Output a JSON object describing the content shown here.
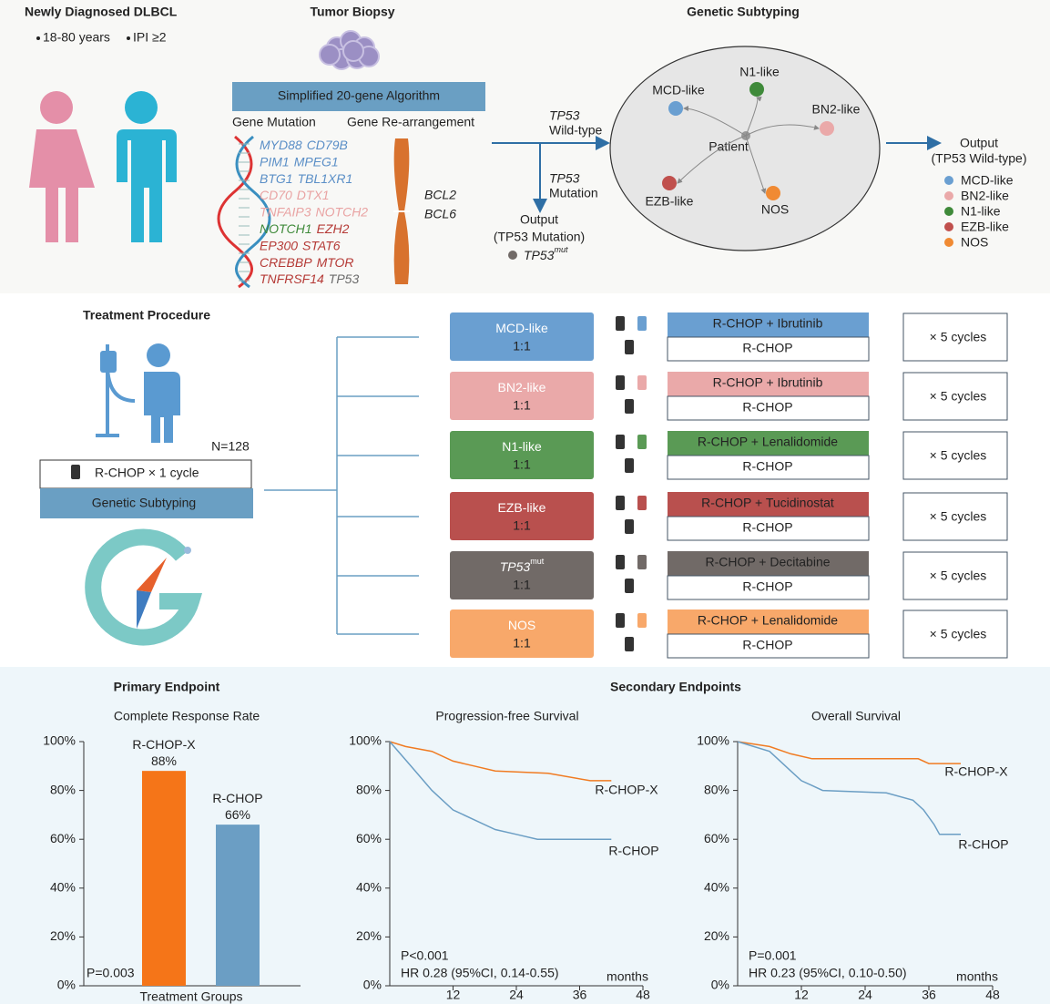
{
  "diagnosis": {
    "title": "Newly Diagnosed DLBCL",
    "criteria": [
      "18-80 years",
      "IPI ≥2"
    ]
  },
  "biopsy": {
    "title": "Tumor Biopsy",
    "algorithm": "Simplified 20-gene Algorithm",
    "mutation_heading": "Gene Mutation",
    "rearrangement_heading": "Gene Re-arrangement",
    "mutations": [
      [
        {
          "name": "MYD88",
          "color": "#5b8fc7"
        },
        {
          "name": "CD79B",
          "color": "#5b8fc7"
        }
      ],
      [
        {
          "name": "PIM1",
          "color": "#5b8fc7"
        },
        {
          "name": "MPEG1",
          "color": "#5b8fc7"
        }
      ],
      [
        {
          "name": "BTG1",
          "color": "#5b8fc7"
        },
        {
          "name": "TBL1XR1",
          "color": "#5b8fc7"
        }
      ],
      [
        {
          "name": "CD70",
          "color": "#e9a3a3"
        },
        {
          "name": "DTX1",
          "color": "#e9a3a3"
        }
      ],
      [
        {
          "name": "TNFAIP3",
          "color": "#e9a3a3"
        },
        {
          "name": "NOTCH2",
          "color": "#e9a3a3"
        }
      ],
      [
        {
          "name": "NOTCH1",
          "color": "#3f8a3a"
        },
        {
          "name": "EZH2",
          "color": "#b53a36"
        }
      ],
      [
        {
          "name": "EP300",
          "color": "#b53a36"
        },
        {
          "name": "STAT6",
          "color": "#b53a36"
        }
      ],
      [
        {
          "name": "CREBBP",
          "color": "#b53a36"
        },
        {
          "name": "MTOR",
          "color": "#b53a36"
        }
      ],
      [
        {
          "name": "TNFRSF14",
          "color": "#b53a36"
        },
        {
          "name": "TP53",
          "color": "#6b6b6b"
        }
      ]
    ],
    "rearrangements": [
      {
        "name": "BCL2",
        "color": "#b53a36"
      },
      {
        "name": "BCL6",
        "color": "#e9a3a3"
      }
    ]
  },
  "split": {
    "wild_type": [
      "TP53",
      "Wild-type"
    ],
    "mutation": [
      "TP53",
      "Mutation"
    ],
    "output_title": "Output",
    "output_label": "(TP53 Mutation)",
    "output_gene": "TP53",
    "output_sup": "mut"
  },
  "subtyping": {
    "title": "Genetic Subtyping",
    "center": "Patient",
    "nodes": [
      {
        "name": "MCD-like",
        "color": "#6a9fd1"
      },
      {
        "name": "N1-like",
        "color": "#3f8a3a"
      },
      {
        "name": "BN2-like",
        "color": "#eaa9a9"
      },
      {
        "name": "EZB-like",
        "color": "#c0504d"
      },
      {
        "name": "NOS",
        "color": "#f08a33"
      }
    ],
    "output_title": "Output",
    "output_label": "(TP53 Wild-type)",
    "legend": [
      {
        "name": "MCD-like",
        "color": "#6a9fd1"
      },
      {
        "name": "BN2-like",
        "color": "#eaa9a9"
      },
      {
        "name": "N1-like",
        "color": "#3f8a3a"
      },
      {
        "name": "EZB-like",
        "color": "#c0504d"
      },
      {
        "name": "NOS",
        "color": "#f08a33"
      }
    ]
  },
  "treatment": {
    "title": "Treatment Procedure",
    "n": "N=128",
    "induction": "R-CHOP × 1 cycle",
    "subtyping": "Genetic Subtyping",
    "arms": [
      {
        "name": "MCD-like",
        "ratio": "1:1",
        "experimental": "R-CHOP + Ibrutinib",
        "control": "R-CHOP",
        "cycles": "× 5 cycles",
        "color": "#6a9fd1"
      },
      {
        "name": "BN2-like",
        "ratio": "1:1",
        "experimental": "R-CHOP + Ibrutinib",
        "control": "R-CHOP",
        "cycles": "× 5 cycles",
        "color": "#eaa9a9"
      },
      {
        "name": "N1-like",
        "ratio": "1:1",
        "experimental": "R-CHOP + Lenalidomide",
        "control": "R-CHOP",
        "cycles": "× 5 cycles",
        "color": "#5a9a55"
      },
      {
        "name": "EZB-like",
        "ratio": "1:1",
        "experimental": "R-CHOP + Tucidinostat",
        "control": "R-CHOP",
        "cycles": "× 5 cycles",
        "color": "#b9504e"
      },
      {
        "name": "TP53",
        "sup": "mut",
        "ratio": "1:1",
        "experimental": "R-CHOP + Decitabine",
        "control": "R-CHOP",
        "cycles": "× 5 cycles",
        "color": "#716a67"
      },
      {
        "name": "NOS",
        "ratio": "1:1",
        "experimental": "R-CHOP + Lenalidomide",
        "control": "R-CHOP",
        "cycles": "× 5 cycles",
        "color": "#f8a86a"
      }
    ]
  },
  "endpoints": {
    "primary": "Primary Endpoint",
    "secondary": "Secondary Endpoints"
  },
  "chart_data": [
    {
      "type": "bar",
      "title": "Complete Response Rate",
      "x_label": "Treatment Groups",
      "annotation": "P=0.003",
      "categories": [
        "R-CHOP-X",
        "R-CHOP"
      ],
      "colors": [
        "#f57518",
        "#6b9ec4"
      ],
      "values": [
        88,
        66
      ],
      "value_labels": [
        "88%",
        "66%"
      ],
      "ylim": [
        0,
        100
      ],
      "yticks": [
        {
          "value": 0,
          "label": "0%"
        },
        {
          "value": 20,
          "label": "20%"
        },
        {
          "value": 40,
          "label": "40%"
        },
        {
          "value": 60,
          "label": "60%"
        },
        {
          "value": 80,
          "label": "80%"
        },
        {
          "value": 100,
          "label": "100%"
        }
      ]
    },
    {
      "type": "line",
      "title": "Progression-free Survival",
      "x_label": "months",
      "annotations": [
        "P<0.001",
        "HR 0.28 (95%CI, 0.14-0.55)"
      ],
      "xlim": [
        0,
        48
      ],
      "xticks": [
        12,
        24,
        36,
        48
      ],
      "ylim": [
        0,
        100
      ],
      "yticks": [
        {
          "value": 0,
          "label": "0%"
        },
        {
          "value": 20,
          "label": "20%"
        },
        {
          "value": 40,
          "label": "40%"
        },
        {
          "value": 60,
          "label": "60%"
        },
        {
          "value": 80,
          "label": "80%"
        },
        {
          "value": 100,
          "label": "100%"
        }
      ],
      "series": [
        {
          "name": "R-CHOP-X",
          "color": "#f07b22",
          "x": [
            0,
            3,
            8,
            12,
            16,
            20,
            30,
            38,
            42
          ],
          "values": [
            100,
            98,
            96,
            92,
            90,
            88,
            87,
            84,
            84
          ]
        },
        {
          "name": "R-CHOP",
          "color": "#6b9ec4",
          "x": [
            0,
            2,
            4,
            6,
            8,
            10,
            12,
            16,
            20,
            24,
            28,
            42
          ],
          "values": [
            100,
            95,
            90,
            85,
            80,
            76,
            72,
            68,
            64,
            62,
            60,
            60
          ]
        }
      ]
    },
    {
      "type": "line",
      "title": "Overall Survival",
      "x_label": "months",
      "annotations": [
        "P=0.001",
        "HR 0.23 (95%CI, 0.10-0.50)"
      ],
      "xlim": [
        0,
        48
      ],
      "xticks": [
        12,
        24,
        36,
        48
      ],
      "ylim": [
        0,
        100
      ],
      "yticks": [
        {
          "value": 0,
          "label": "0%"
        },
        {
          "value": 20,
          "label": "20%"
        },
        {
          "value": 40,
          "label": "40%"
        },
        {
          "value": 60,
          "label": "60%"
        },
        {
          "value": 80,
          "label": "80%"
        },
        {
          "value": 100,
          "label": "100%"
        }
      ],
      "series": [
        {
          "name": "R-CHOP-X",
          "color": "#f07b22",
          "x": [
            0,
            6,
            10,
            14,
            34,
            36,
            42
          ],
          "values": [
            100,
            98,
            95,
            93,
            93,
            91,
            91
          ]
        },
        {
          "name": "R-CHOP",
          "color": "#6b9ec4",
          "x": [
            0,
            6,
            8,
            10,
            12,
            14,
            16,
            28,
            33,
            35,
            37,
            38,
            42
          ],
          "values": [
            100,
            96,
            92,
            88,
            84,
            82,
            80,
            79,
            76,
            72,
            66,
            62,
            62
          ]
        }
      ]
    }
  ]
}
